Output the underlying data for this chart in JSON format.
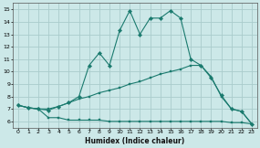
{
  "xlabel": "Humidex (Indice chaleur)",
  "background_color": "#cce8e8",
  "grid_color": "#aacccc",
  "line_color": "#1a7a6e",
  "xlim": [
    -0.5,
    23.5
  ],
  "ylim": [
    5.5,
    15.5
  ],
  "xticks": [
    0,
    1,
    2,
    3,
    4,
    5,
    6,
    7,
    8,
    9,
    10,
    11,
    12,
    13,
    14,
    15,
    16,
    17,
    18,
    19,
    20,
    21,
    22,
    23
  ],
  "yticks": [
    6,
    7,
    8,
    9,
    10,
    11,
    12,
    13,
    14,
    15
  ],
  "series1_x": [
    0,
    1,
    2,
    3,
    4,
    5,
    6,
    7,
    8,
    9,
    10,
    11,
    12,
    13,
    14,
    15,
    16,
    17,
    18,
    19,
    20,
    21,
    22,
    23
  ],
  "series1_y": [
    7.3,
    7.1,
    7.0,
    6.3,
    6.3,
    6.1,
    6.1,
    6.1,
    6.1,
    6.0,
    6.0,
    6.0,
    6.0,
    6.0,
    6.0,
    6.0,
    6.0,
    6.0,
    6.0,
    6.0,
    6.0,
    5.9,
    5.9,
    5.8
  ],
  "series2_x": [
    0,
    1,
    2,
    3,
    4,
    5,
    6,
    7,
    8,
    9,
    10,
    11,
    12,
    13,
    14,
    15,
    16,
    17,
    18,
    19,
    20,
    21,
    22,
    23
  ],
  "series2_y": [
    7.3,
    7.1,
    7.0,
    7.0,
    7.2,
    7.5,
    7.8,
    8.0,
    8.3,
    8.5,
    8.7,
    9.0,
    9.2,
    9.5,
    9.8,
    10.0,
    10.2,
    10.5,
    10.5,
    9.6,
    8.0,
    7.0,
    6.8,
    5.8
  ],
  "series3_x": [
    0,
    1,
    2,
    3,
    4,
    5,
    6,
    7,
    8,
    9,
    10,
    11,
    12,
    13,
    14,
    15,
    16,
    17,
    18,
    19,
    20,
    21,
    22,
    23
  ],
  "series3_y": [
    7.3,
    7.1,
    7.0,
    6.9,
    7.2,
    7.5,
    8.0,
    10.5,
    11.5,
    10.5,
    13.3,
    14.9,
    13.0,
    14.3,
    14.3,
    14.9,
    14.3,
    11.0,
    10.5,
    9.5,
    8.1,
    7.0,
    6.8,
    5.8
  ]
}
